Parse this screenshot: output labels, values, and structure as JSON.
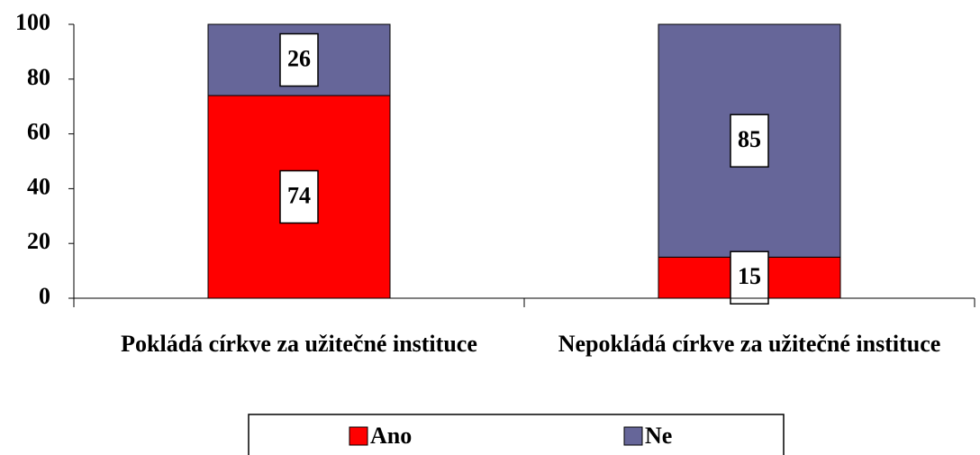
{
  "chart_data": {
    "type": "stacked_bar",
    "categories": [
      "Pokládá církve za užitečné instituce",
      "Nepokládá církve za užitečné instituce"
    ],
    "series": [
      {
        "name": "Ano",
        "color": "#ff0000",
        "values": [
          74,
          15
        ]
      },
      {
        "name": "Ne",
        "color": "#666699",
        "values": [
          26,
          85
        ]
      }
    ],
    "ylim": [
      0,
      100
    ],
    "yticks": [
      0,
      20,
      40,
      60,
      80,
      100
    ],
    "grid": false,
    "legend": "bottom"
  }
}
